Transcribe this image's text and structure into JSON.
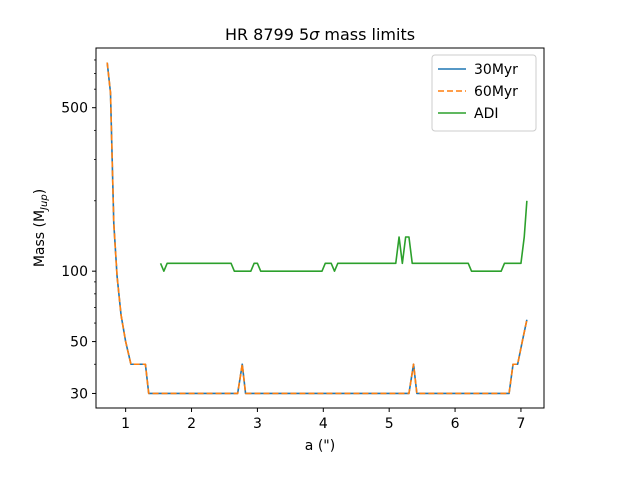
{
  "chart_data": {
    "type": "line",
    "title": "HR 8799 5σ mass limits",
    "title_prefix": "HR 8799 5",
    "title_sigma": "σ",
    "title_suffix": " mass limits",
    "xlabel": "a (\")",
    "ylabel": "Mass (M",
    "ylabel_sub": "Jup",
    "ylabel_close": ")",
    "xlim": [
      0.55,
      7.35
    ],
    "ylim": [
      26,
      900
    ],
    "yscale": "log",
    "xticks": [
      1,
      2,
      3,
      4,
      5,
      6,
      7
    ],
    "xtick_labels": [
      "1",
      "2",
      "3",
      "4",
      "5",
      "6",
      "7"
    ],
    "yticks": [
      30,
      50,
      100,
      500
    ],
    "ytick_labels": [
      "30",
      "50",
      "100",
      "500"
    ],
    "yminor": [
      40,
      60,
      70,
      80,
      90,
      200,
      300,
      400,
      600,
      700,
      800
    ],
    "legend_position": "top-right",
    "series": [
      {
        "name": "30Myr",
        "color": "#1f77b4",
        "style": "solid",
        "x": [
          0.72,
          0.77,
          0.82,
          0.87,
          0.93,
          1.0,
          1.08,
          1.15,
          1.3,
          1.35,
          2.7,
          2.77,
          2.82,
          5.3,
          5.37,
          5.42,
          6.82,
          6.88,
          6.95,
          7.02,
          7.09
        ],
        "y": [
          780,
          580,
          160,
          95,
          65,
          50,
          40,
          40,
          40,
          30,
          30,
          40,
          30,
          30,
          40,
          30,
          30,
          40,
          40,
          50,
          62
        ]
      },
      {
        "name": "60Myr",
        "color": "#ff7f0e",
        "style": "dashed",
        "x": [
          0.72,
          0.77,
          0.82,
          0.87,
          0.93,
          1.0,
          1.08,
          1.15,
          1.3,
          1.35,
          2.7,
          2.77,
          2.82,
          5.3,
          5.37,
          5.42,
          6.82,
          6.88,
          6.95,
          7.02,
          7.09
        ],
        "y": [
          780,
          580,
          160,
          95,
          65,
          50,
          40,
          40,
          40,
          30,
          30,
          40,
          30,
          30,
          40,
          30,
          30,
          40,
          40,
          50,
          62
        ]
      },
      {
        "name": "ADI",
        "color": "#2ca02c",
        "style": "solid",
        "x": [
          1.53,
          1.58,
          1.63,
          2.6,
          2.65,
          2.9,
          2.95,
          3.0,
          3.05,
          3.98,
          4.03,
          4.12,
          4.17,
          4.22,
          5.1,
          5.15,
          5.2,
          5.25,
          5.3,
          5.35,
          5.4,
          6.2,
          6.25,
          6.7,
          6.75,
          7.0,
          7.05,
          7.09
        ],
        "y": [
          108,
          100,
          108,
          108,
          100,
          100,
          108,
          108,
          100,
          100,
          108,
          108,
          100,
          108,
          108,
          140,
          108,
          140,
          140,
          108,
          108,
          108,
          100,
          100,
          108,
          108,
          140,
          200
        ]
      }
    ]
  }
}
